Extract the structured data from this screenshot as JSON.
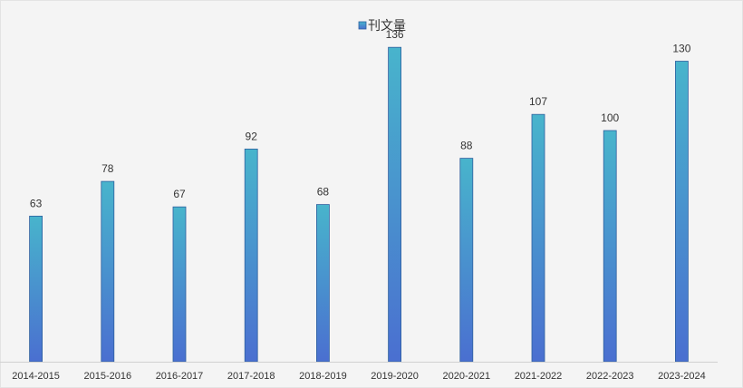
{
  "chart_data": {
    "type": "bar",
    "title": "",
    "xlabel": "",
    "ylabel": "",
    "categories": [
      "2014-2015",
      "2015-2016",
      "2016-2017",
      "2017-2018",
      "2018-2019",
      "2019-2020",
      "2020-2021",
      "2021-2022",
      "2022-2023",
      "2023-2024"
    ],
    "series": [
      {
        "name": "刊文量",
        "values": [
          63,
          78,
          67,
          92,
          68,
          136,
          88,
          107,
          100,
          130
        ]
      }
    ],
    "ylim": [
      0,
      145
    ],
    "grid": false,
    "legend_position": "top-center",
    "colors": {
      "background": "#f4f4f4",
      "bar_top": "#48b4cc",
      "bar_bottom": "#4a6fd0",
      "bar_edge": "#2e5f9e",
      "axis": "#d0d0d0",
      "text": "#333333"
    }
  }
}
